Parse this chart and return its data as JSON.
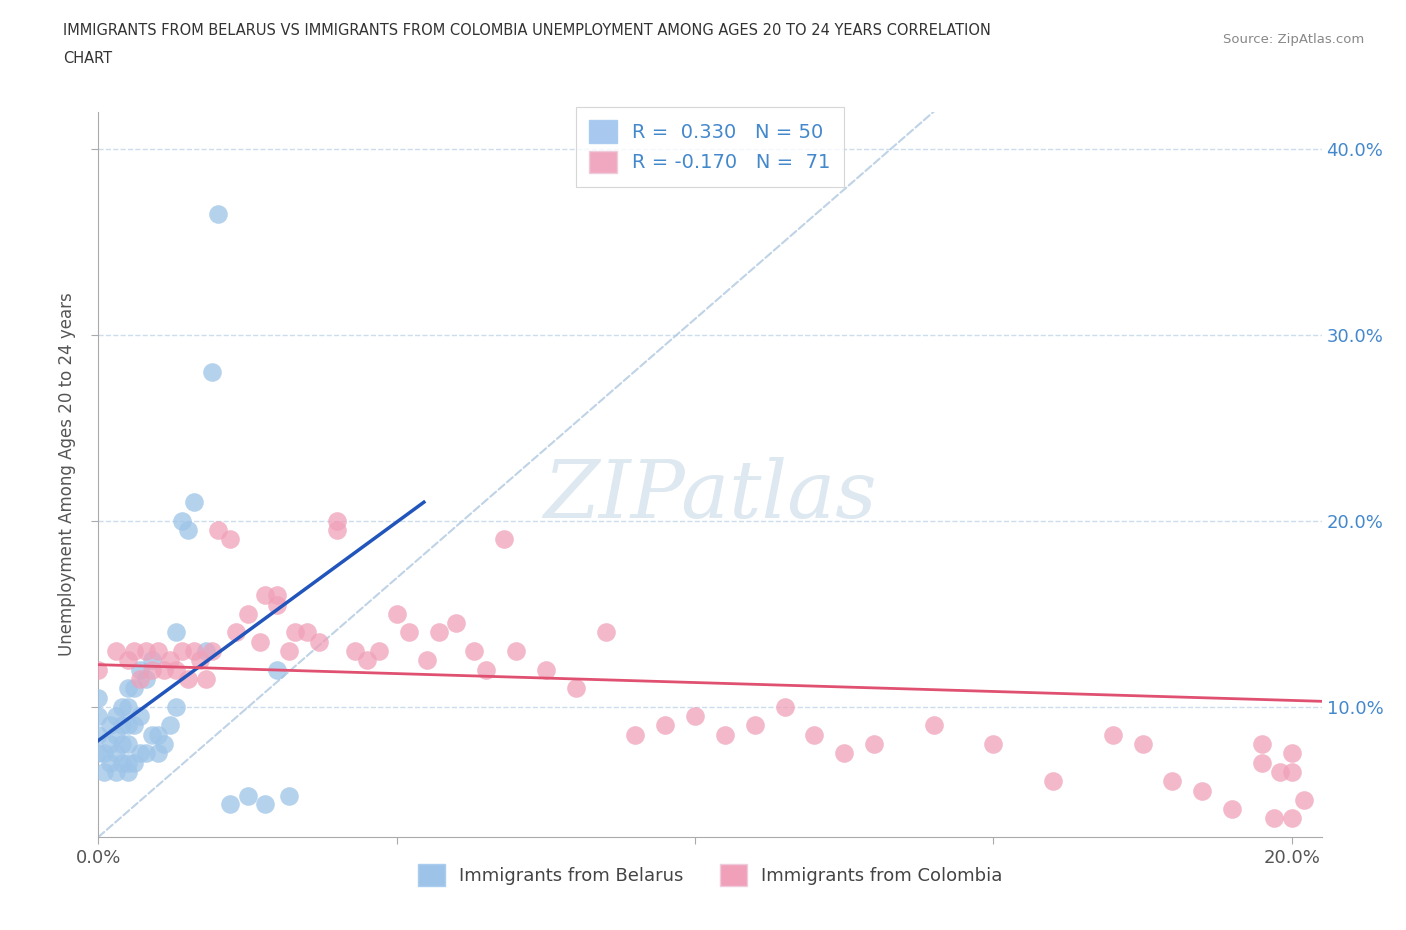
{
  "title_line1": "IMMIGRANTS FROM BELARUS VS IMMIGRANTS FROM COLOMBIA UNEMPLOYMENT AMONG AGES 20 TO 24 YEARS CORRELATION",
  "title_line2": "CHART",
  "source": "Source: ZipAtlas.com",
  "ylabel": "Unemployment Among Ages 20 to 24 years",
  "xlim": [
    0.0,
    0.205
  ],
  "ylim": [
    0.03,
    0.42
  ],
  "x_ticks": [
    0.0,
    0.05,
    0.1,
    0.15,
    0.2
  ],
  "y_ticks": [
    0.1,
    0.2,
    0.3,
    0.4
  ],
  "legend_entries": [
    {
      "label": "Immigrants from Belarus",
      "color": "#a8c8f0",
      "R": "0.330",
      "N": "50"
    },
    {
      "label": "Immigrants from Colombia",
      "color": "#f0a8c0",
      "R": "-0.170",
      "N": "71"
    }
  ],
  "belarus_dot_color": "#9dc4e8",
  "colombia_dot_color": "#f0a0b8",
  "belarus_line_color": "#2255bb",
  "colombia_line_color": "#e05070",
  "diagonal_color": "#b0c8e0",
  "watermark_color": "#dde8f0",
  "background_color": "#ffffff",
  "grid_color": "#ccddee",
  "tick_color": "#4488cc",
  "belarus_x": [
    0.0,
    0.0,
    0.0,
    0.0,
    0.001,
    0.001,
    0.002,
    0.002,
    0.002,
    0.003,
    0.003,
    0.003,
    0.003,
    0.004,
    0.004,
    0.004,
    0.004,
    0.005,
    0.005,
    0.005,
    0.005,
    0.005,
    0.005,
    0.006,
    0.006,
    0.006,
    0.007,
    0.007,
    0.007,
    0.008,
    0.008,
    0.009,
    0.009,
    0.01,
    0.01,
    0.011,
    0.012,
    0.013,
    0.013,
    0.014,
    0.015,
    0.016,
    0.018,
    0.019,
    0.02,
    0.022,
    0.025,
    0.028,
    0.03,
    0.032
  ],
  "belarus_y": [
    0.075,
    0.085,
    0.095,
    0.105,
    0.065,
    0.075,
    0.07,
    0.08,
    0.09,
    0.065,
    0.075,
    0.085,
    0.095,
    0.07,
    0.08,
    0.09,
    0.1,
    0.065,
    0.07,
    0.08,
    0.09,
    0.1,
    0.11,
    0.07,
    0.09,
    0.11,
    0.075,
    0.095,
    0.12,
    0.075,
    0.115,
    0.085,
    0.125,
    0.075,
    0.085,
    0.08,
    0.09,
    0.1,
    0.14,
    0.2,
    0.195,
    0.21,
    0.13,
    0.28,
    0.365,
    0.048,
    0.052,
    0.048,
    0.12,
    0.052
  ],
  "colombia_x": [
    0.0,
    0.003,
    0.005,
    0.006,
    0.007,
    0.008,
    0.009,
    0.01,
    0.011,
    0.012,
    0.013,
    0.014,
    0.015,
    0.016,
    0.017,
    0.018,
    0.019,
    0.02,
    0.022,
    0.023,
    0.025,
    0.027,
    0.028,
    0.03,
    0.03,
    0.032,
    0.033,
    0.035,
    0.037,
    0.04,
    0.04,
    0.043,
    0.045,
    0.047,
    0.05,
    0.052,
    0.055,
    0.057,
    0.06,
    0.063,
    0.065,
    0.068,
    0.07,
    0.075,
    0.08,
    0.085,
    0.09,
    0.095,
    0.1,
    0.105,
    0.11,
    0.115,
    0.12,
    0.125,
    0.13,
    0.14,
    0.15,
    0.16,
    0.17,
    0.175,
    0.18,
    0.185,
    0.19,
    0.195,
    0.195,
    0.197,
    0.198,
    0.2,
    0.2,
    0.2,
    0.202
  ],
  "colombia_y": [
    0.12,
    0.13,
    0.125,
    0.13,
    0.115,
    0.13,
    0.12,
    0.13,
    0.12,
    0.125,
    0.12,
    0.13,
    0.115,
    0.13,
    0.125,
    0.115,
    0.13,
    0.195,
    0.19,
    0.14,
    0.15,
    0.135,
    0.16,
    0.155,
    0.16,
    0.13,
    0.14,
    0.14,
    0.135,
    0.195,
    0.2,
    0.13,
    0.125,
    0.13,
    0.15,
    0.14,
    0.125,
    0.14,
    0.145,
    0.13,
    0.12,
    0.19,
    0.13,
    0.12,
    0.11,
    0.14,
    0.085,
    0.09,
    0.095,
    0.085,
    0.09,
    0.1,
    0.085,
    0.075,
    0.08,
    0.09,
    0.08,
    0.06,
    0.085,
    0.08,
    0.06,
    0.055,
    0.045,
    0.07,
    0.08,
    0.04,
    0.065,
    0.075,
    0.065,
    0.04,
    0.05
  ]
}
